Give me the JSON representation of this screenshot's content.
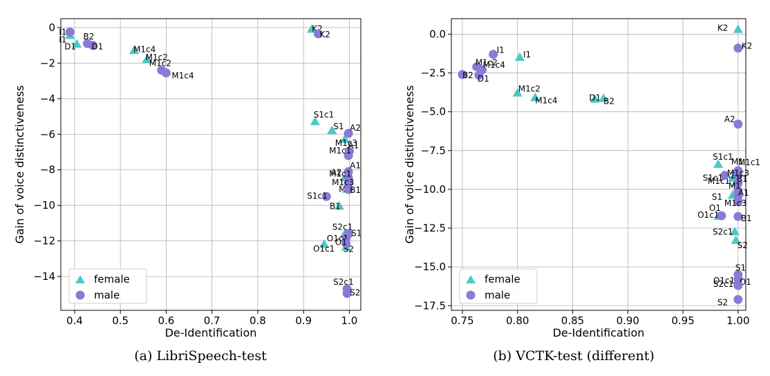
{
  "colors": {
    "female": "#4ec9c7",
    "male": "#8a7ad6",
    "grid": "#b0b0b0"
  },
  "chart_data": [
    {
      "type": "scatter",
      "xlabel": "De-Identification",
      "ylabel": "Gain of voice distinctiveness",
      "xlim": [
        0.37,
        1.025
      ],
      "ylim": [
        -15.9,
        0.5
      ],
      "xticks": [
        0.4,
        0.5,
        0.6,
        0.7,
        0.8,
        0.9,
        1.0
      ],
      "xtick_labels": [
        "0.4",
        "0.5",
        "0.6",
        "0.7",
        "0.8",
        "0.9",
        "1.0"
      ],
      "yticks": [
        0,
        -2,
        -4,
        -6,
        -8,
        -10,
        -12,
        -14
      ],
      "ytick_labels": [
        "0",
        "−2",
        "−4",
        "−6",
        "−8",
        "−10",
        "−12",
        "−14"
      ],
      "grid": true,
      "legend_position": "lower-left",
      "caption": "(a) LibriSpeech-test",
      "series": [
        {
          "name": "female",
          "marker": "triangle",
          "points": [
            {
              "label": "I1",
              "x": 0.39,
              "y": -0.45
            },
            {
              "label": "D1",
              "x": 0.405,
              "y": -0.95
            },
            {
              "label": "M1c4",
              "x": 0.53,
              "y": -1.3
            },
            {
              "label": "M1c2",
              "x": 0.558,
              "y": -1.8
            },
            {
              "label": "K2",
              "x": 0.918,
              "y": -0.1
            },
            {
              "label": "S1c1",
              "x": 0.925,
              "y": -5.3
            },
            {
              "label": "S1",
              "x": 0.962,
              "y": -5.8
            },
            {
              "label": "M1c3",
              "x": 0.99,
              "y": -6.3
            },
            {
              "label": "A2",
              "x": 0.99,
              "y": -8.45
            },
            {
              "label": "M1",
              "x": 0.995,
              "y": -9.1
            },
            {
              "label": "B1",
              "x": 0.978,
              "y": -10.05
            },
            {
              "label": "S2c1",
              "x": 0.99,
              "y": -11.6
            },
            {
              "label": "O1c1",
              "x": 0.945,
              "y": -12.2
            },
            {
              "label": "S2",
              "x": 0.993,
              "y": -12.35
            }
          ]
        },
        {
          "name": "male",
          "marker": "circle",
          "points": [
            {
              "label": "I1",
              "x": 0.39,
              "y": -0.25
            },
            {
              "label": "B2",
              "x": 0.428,
              "y": -0.9
            },
            {
              "label": "D1",
              "x": 0.44,
              "y": -1.0
            },
            {
              "label": "M1c2",
              "x": 0.59,
              "y": -2.4
            },
            {
              "label": "M1c4",
              "x": 0.6,
              "y": -2.55
            },
            {
              "label": "K2",
              "x": 0.932,
              "y": -0.35
            },
            {
              "label": "A2",
              "x": 0.998,
              "y": -5.95
            },
            {
              "label": "A1",
              "x": 1.0,
              "y": -6.95
            },
            {
              "label": "M1c1",
              "x": 0.998,
              "y": -7.2
            },
            {
              "label": "A1",
              "x": 0.998,
              "y": -8.1
            },
            {
              "label": "M1c1",
              "x": 0.998,
              "y": -8.45
            },
            {
              "label": "M1c3",
              "x": 0.998,
              "y": -8.75
            },
            {
              "label": "B1",
              "x": 0.998,
              "y": -9.1
            },
            {
              "label": "S1c1",
              "x": 0.95,
              "y": -9.5
            },
            {
              "label": "S1",
              "x": 0.998,
              "y": -11.6
            },
            {
              "label": "O1c1",
              "x": 0.993,
              "y": -11.85
            },
            {
              "label": "O1",
              "x": 0.993,
              "y": -12.15
            },
            {
              "label": "S2c1",
              "x": 0.995,
              "y": -14.7
            },
            {
              "label": "S2",
              "x": 0.995,
              "y": -14.95
            }
          ]
        }
      ]
    },
    {
      "type": "scatter",
      "xlabel": "De-Identification",
      "ylabel": "Gain of voice distinctiveness",
      "xlim": [
        0.74,
        1.007
      ],
      "ylim": [
        -17.8,
        1.0
      ],
      "xticks": [
        0.75,
        0.8,
        0.85,
        0.9,
        0.95,
        1.0
      ],
      "xtick_labels": [
        "0.75",
        "0.80",
        "0.85",
        "0.90",
        "0.95",
        "1.00"
      ],
      "yticks": [
        0.0,
        -2.5,
        -5.0,
        -7.5,
        -10.0,
        -12.5,
        -15.0,
        -17.5
      ],
      "ytick_labels": [
        "0.0",
        "−2.5",
        "−5.0",
        "−7.5",
        "−10.0",
        "−12.5",
        "−15.0",
        "−17.5"
      ],
      "grid": true,
      "legend_position": "lower-left",
      "caption": "(b) VCTK-test (different)",
      "series": [
        {
          "name": "female",
          "marker": "triangle",
          "points": [
            {
              "label": "I1",
              "x": 0.802,
              "y": -1.5
            },
            {
              "label": "M1c2",
              "x": 0.8,
              "y": -3.8
            },
            {
              "label": "M1c4",
              "x": 0.816,
              "y": -4.1
            },
            {
              "label": "D1",
              "x": 0.87,
              "y": -4.2
            },
            {
              "label": "B2",
              "x": 0.878,
              "y": -4.15
            },
            {
              "label": "K2",
              "x": 1.0,
              "y": 0.3
            },
            {
              "label": "S1c1",
              "x": 0.982,
              "y": -8.4
            },
            {
              "label": "M1",
              "x": 1.0,
              "y": -8.75
            },
            {
              "label": "M1c1",
              "x": 0.995,
              "y": -9.3
            },
            {
              "label": "S1",
              "x": 0.995,
              "y": -10.4
            },
            {
              "label": "A2",
              "x": 0.998,
              "y": -9.6
            },
            {
              "label": "O1c1",
              "x": 0.982,
              "y": -11.75
            },
            {
              "label": "S2c1",
              "x": 0.997,
              "y": -12.75
            },
            {
              "label": "S2",
              "x": 0.998,
              "y": -13.3
            }
          ]
        },
        {
          "name": "male",
          "marker": "circle",
          "points": [
            {
              "label": "I1",
              "x": 0.778,
              "y": -1.3
            },
            {
              "label": "M1c2",
              "x": 0.763,
              "y": -2.1
            },
            {
              "label": "B2",
              "x": 0.75,
              "y": -2.6
            },
            {
              "label": "M1c4",
              "x": 0.768,
              "y": -2.3
            },
            {
              "label": "D1",
              "x": 0.765,
              "y": -2.65
            },
            {
              "label": "K2",
              "x": 1.0,
              "y": -0.9
            },
            {
              "label": "A2",
              "x": 1.0,
              "y": -5.8
            },
            {
              "label": "M1c1",
              "x": 1.0,
              "y": -8.8
            },
            {
              "label": "S1c1",
              "x": 0.988,
              "y": -9.1
            },
            {
              "label": "M1c3",
              "x": 1.0,
              "y": -9.1
            },
            {
              "label": "B1",
              "x": 1.0,
              "y": -9.6
            },
            {
              "label": "M1",
              "x": 1.0,
              "y": -10.1
            },
            {
              "label": "A1",
              "x": 1.0,
              "y": -10.45
            },
            {
              "label": "M1c3",
              "x": 1.0,
              "y": -10.8
            },
            {
              "label": "O1",
              "x": 0.985,
              "y": -11.7
            },
            {
              "label": "B1",
              "x": 1.0,
              "y": -11.75
            },
            {
              "label": "S1",
              "x": 1.0,
              "y": -15.5
            },
            {
              "label": "O1c1",
              "x": 1.0,
              "y": -15.8
            },
            {
              "label": "O1",
              "x": 1.0,
              "y": -16.1
            },
            {
              "label": "S2c1",
              "x": 1.0,
              "y": -16.2
            },
            {
              "label": "S2",
              "x": 1.0,
              "y": -17.1
            }
          ]
        }
      ]
    }
  ]
}
